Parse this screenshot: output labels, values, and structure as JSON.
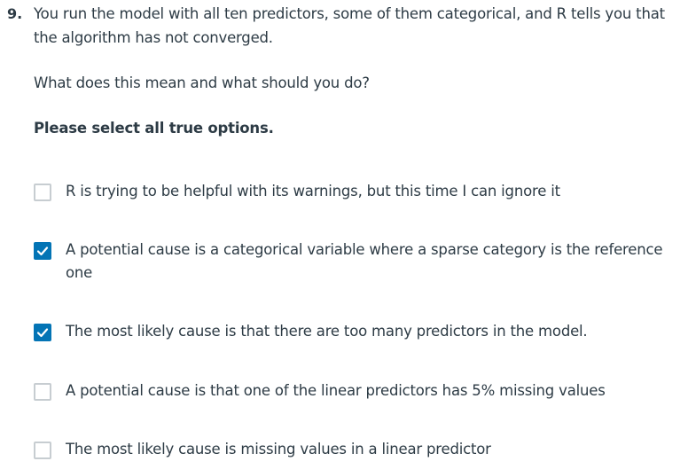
{
  "question": {
    "number": "9.",
    "text": "You run the model with all ten predictors, some of them categorical, and R tells you that the algorithm has not converged.",
    "subtext": "What does this mean and what should you do?",
    "instruction": "Please select all true options."
  },
  "options": [
    {
      "label": "R is trying to be helpful with its warnings, but this time I can ignore it",
      "checked": false,
      "icon": "empty-checkbox"
    },
    {
      "label": "A potential cause is a categorical variable where a sparse category is the reference one",
      "checked": true,
      "icon": "checkmark-icon"
    },
    {
      "label": "The most likely cause is that there are too many predictors in the model.",
      "checked": true,
      "icon": "checkmark-icon"
    },
    {
      "label": "A potential cause is that one of the linear predictors has 5% missing values",
      "checked": false,
      "icon": "empty-checkbox"
    },
    {
      "label": "The most likely cause is missing values in a linear predictor",
      "checked": false,
      "icon": "empty-checkbox"
    }
  ],
  "colors": {
    "accent": "#0374b5",
    "text": "#2d3b45",
    "checkbox_border": "#c7cdd1"
  }
}
